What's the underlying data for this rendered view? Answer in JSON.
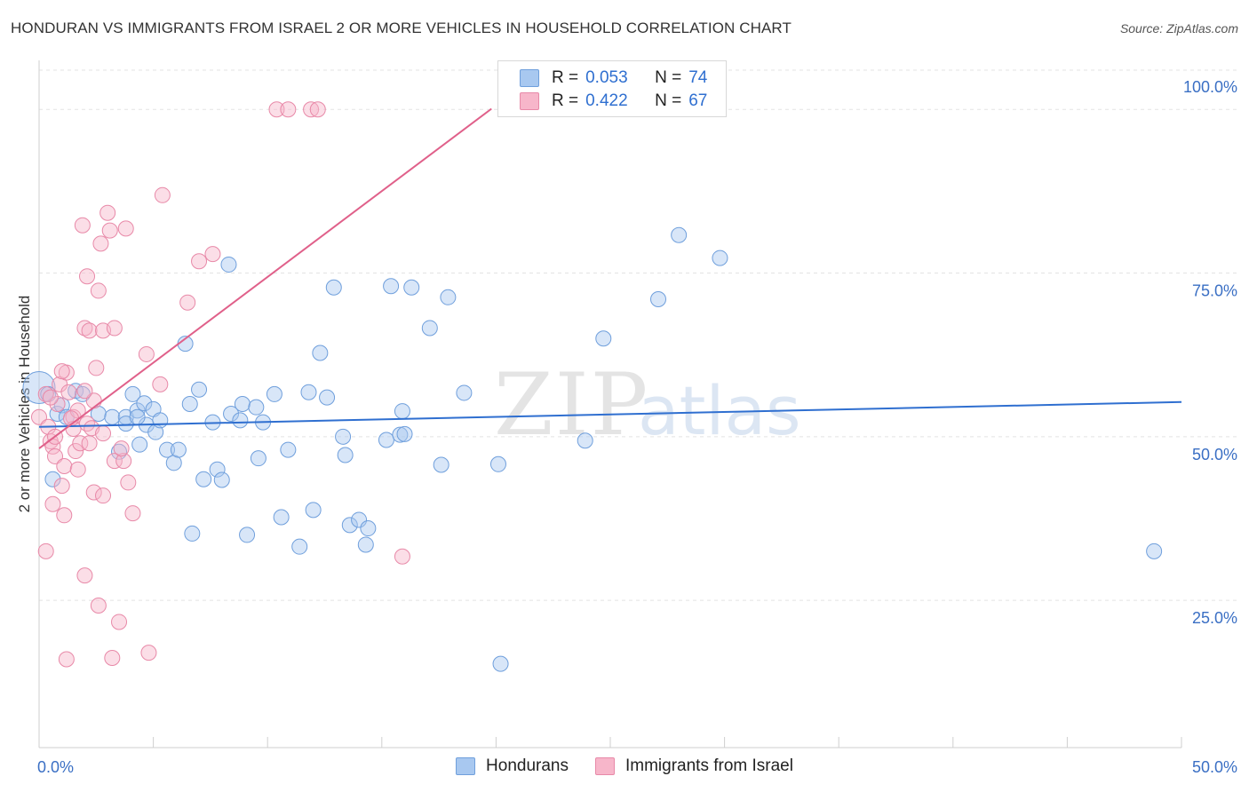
{
  "title": "HONDURAN VS IMMIGRANTS FROM ISRAEL 2 OR MORE VEHICLES IN HOUSEHOLD CORRELATION CHART",
  "source": "Source: ZipAtlas.com",
  "watermark": {
    "zip": "ZIP",
    "atlas": "atlas"
  },
  "legend": {
    "rows": [
      {
        "r_label": "R =",
        "r_value": "0.053",
        "n_label": "N =",
        "n_value": "74",
        "color": "#a8c8f0"
      },
      {
        "r_label": "R =",
        "r_value": "0.422",
        "n_label": "N =",
        "n_value": "67",
        "color": "#f7b6ca"
      }
    ]
  },
  "bottom_legend": {
    "hondurans": "Hondurans",
    "israel": "Immigrants from Israel"
  },
  "chart_data": {
    "type": "scatter",
    "title": "HONDURAN VS IMMIGRANTS FROM ISRAEL 2 OR MORE VEHICLES IN HOUSEHOLD CORRELATION CHART",
    "xlabel": "",
    "ylabel": "2 or more Vehicles in Household",
    "xlim": [
      0,
      50
    ],
    "ylim": [
      2.5,
      106
    ],
    "x_tick_labels": [
      "0.0%",
      "50.0%"
    ],
    "y_ticks": [
      25,
      50,
      75,
      100
    ],
    "y_tick_labels": [
      "25.0%",
      "50.0%",
      "75.0%",
      "100.0%"
    ],
    "grid": true,
    "series": [
      {
        "name": "Hondurans",
        "color": "#a8c8f0",
        "stroke": "#6f9fdc",
        "trend": {
          "x": [
            0,
            50
          ],
          "y": [
            51.5,
            55.3
          ],
          "color": "#2f6fd0"
        },
        "points": [
          [
            0,
            57.5
          ],
          [
            0.4,
            56.5
          ],
          [
            0.6,
            43.5
          ],
          [
            0.8,
            53.5
          ],
          [
            1.0,
            54.8
          ],
          [
            1.2,
            53.0
          ],
          [
            1.6,
            57.0
          ],
          [
            1.9,
            56.5
          ],
          [
            2.6,
            53.5
          ],
          [
            3.2,
            53.0
          ],
          [
            3.5,
            47.7
          ],
          [
            3.8,
            53.0
          ],
          [
            4.3,
            54.0
          ],
          [
            4.7,
            51.8
          ],
          [
            3.8,
            52.0
          ],
          [
            4.1,
            56.5
          ],
          [
            4.3,
            53.0
          ],
          [
            4.4,
            48.8
          ],
          [
            4.6,
            55.1
          ],
          [
            5.0,
            54.2
          ],
          [
            5.1,
            50.7
          ],
          [
            5.3,
            52.5
          ],
          [
            5.6,
            48.0
          ],
          [
            5.9,
            46.0
          ],
          [
            6.1,
            48.0
          ],
          [
            6.4,
            64.2
          ],
          [
            6.6,
            55.0
          ],
          [
            7.0,
            57.2
          ],
          [
            7.2,
            43.5
          ],
          [
            6.7,
            35.2
          ],
          [
            7.6,
            52.2
          ],
          [
            7.8,
            45.0
          ],
          [
            8.0,
            43.4
          ],
          [
            8.3,
            76.3
          ],
          [
            8.4,
            53.5
          ],
          [
            8.8,
            52.5
          ],
          [
            8.9,
            55.0
          ],
          [
            9.1,
            35.0
          ],
          [
            9.5,
            54.5
          ],
          [
            9.6,
            46.7
          ],
          [
            9.8,
            52.2
          ],
          [
            10.3,
            56.5
          ],
          [
            10.6,
            37.7
          ],
          [
            10.9,
            48.0
          ],
          [
            11.4,
            33.2
          ],
          [
            11.8,
            56.8
          ],
          [
            12.0,
            38.8
          ],
          [
            12.3,
            62.8
          ],
          [
            12.6,
            56.0
          ],
          [
            12.9,
            72.8
          ],
          [
            13.3,
            50.0
          ],
          [
            13.4,
            47.2
          ],
          [
            13.6,
            36.5
          ],
          [
            14.0,
            37.3
          ],
          [
            14.3,
            33.5
          ],
          [
            14.4,
            36.0
          ],
          [
            15.2,
            49.5
          ],
          [
            15.4,
            73.0
          ],
          [
            15.8,
            50.3
          ],
          [
            15.9,
            53.9
          ],
          [
            16.3,
            72.8
          ],
          [
            16.0,
            50.4
          ],
          [
            17.1,
            66.6
          ],
          [
            17.6,
            45.7
          ],
          [
            17.9,
            71.3
          ],
          [
            18.6,
            56.7
          ],
          [
            20.1,
            45.8
          ],
          [
            20.2,
            15.3
          ],
          [
            23.9,
            49.4
          ],
          [
            24.7,
            65.0
          ],
          [
            27.1,
            71.0
          ],
          [
            28.0,
            80.8
          ],
          [
            29.8,
            77.3
          ],
          [
            48.8,
            32.5
          ]
        ]
      },
      {
        "name": "Immigrants from Israel",
        "color": "#f7b6ca",
        "stroke": "#e889a8",
        "trend": {
          "x": [
            0,
            19.8
          ],
          "y": [
            48.2,
            100.1
          ],
          "color": "#e0608a"
        },
        "points": [
          [
            0,
            53.0
          ],
          [
            0.3,
            56.5
          ],
          [
            0.3,
            32.5
          ],
          [
            0.4,
            51.5
          ],
          [
            0.5,
            49.3
          ],
          [
            0.6,
            48.5
          ],
          [
            0.6,
            39.7
          ],
          [
            0.7,
            50.0
          ],
          [
            0.7,
            47.0
          ],
          [
            0.9,
            58.0
          ],
          [
            1.0,
            42.5
          ],
          [
            1.1,
            38.0
          ],
          [
            1.2,
            59.8
          ],
          [
            1.2,
            16.0
          ],
          [
            1.3,
            56.8
          ],
          [
            1.5,
            53.0
          ],
          [
            1.5,
            51.2
          ],
          [
            1.6,
            47.8
          ],
          [
            1.7,
            54.0
          ],
          [
            1.8,
            49.0
          ],
          [
            1.9,
            82.3
          ],
          [
            2.0,
            66.6
          ],
          [
            2.1,
            52.0
          ],
          [
            2.0,
            28.8
          ],
          [
            2.1,
            74.5
          ],
          [
            2.2,
            49.0
          ],
          [
            2.2,
            66.2
          ],
          [
            2.3,
            51.3
          ],
          [
            2.4,
            55.5
          ],
          [
            2.4,
            41.5
          ],
          [
            2.5,
            60.5
          ],
          [
            2.6,
            72.3
          ],
          [
            2.6,
            24.2
          ],
          [
            2.7,
            79.5
          ],
          [
            2.8,
            66.2
          ],
          [
            2.8,
            41.0
          ],
          [
            3.0,
            84.2
          ],
          [
            3.1,
            81.5
          ],
          [
            3.2,
            16.2
          ],
          [
            3.3,
            66.6
          ],
          [
            3.3,
            46.3
          ],
          [
            3.5,
            21.7
          ],
          [
            3.7,
            46.3
          ],
          [
            3.8,
            81.8
          ],
          [
            3.9,
            43.0
          ],
          [
            4.1,
            38.3
          ],
          [
            4.7,
            62.6
          ],
          [
            4.8,
            17.0
          ],
          [
            5.3,
            58.0
          ],
          [
            5.4,
            86.9
          ],
          [
            6.5,
            70.5
          ],
          [
            7.0,
            76.8
          ],
          [
            7.6,
            77.9
          ],
          [
            10.4,
            100
          ],
          [
            10.9,
            100
          ],
          [
            11.9,
            100
          ],
          [
            12.2,
            100
          ],
          [
            15.9,
            31.7
          ],
          [
            0.8,
            55.0
          ],
          [
            1.4,
            52.8
          ],
          [
            1.1,
            45.5
          ],
          [
            0.5,
            56.0
          ],
          [
            2.0,
            57.0
          ],
          [
            1.0,
            60.0
          ],
          [
            2.8,
            50.5
          ],
          [
            1.7,
            45.0
          ],
          [
            3.6,
            48.2
          ]
        ]
      }
    ]
  }
}
